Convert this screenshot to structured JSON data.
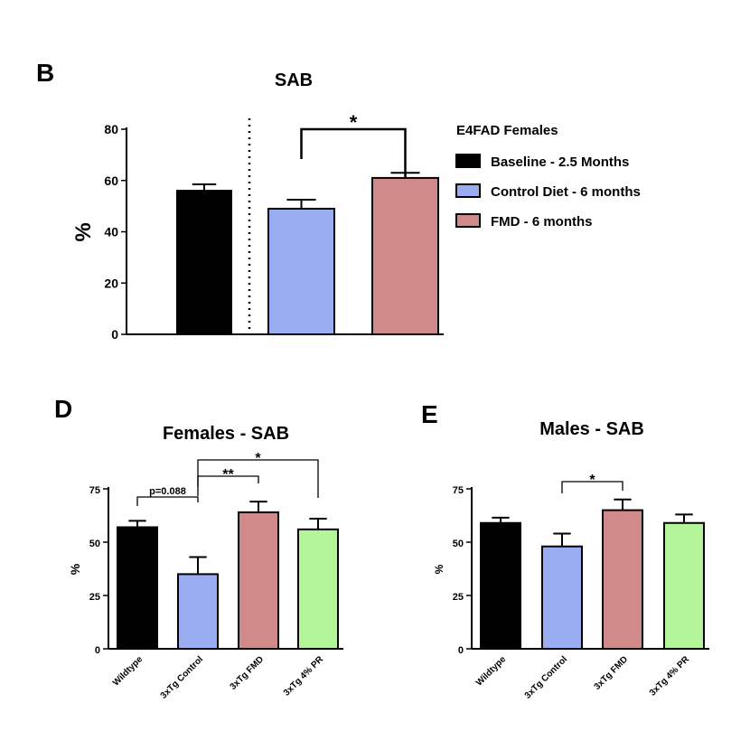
{
  "chart_data": [
    {
      "panel": "B",
      "type": "bar",
      "title": "SAB",
      "ylabel": "%",
      "ylim": [
        0,
        80
      ],
      "yticks": [
        "0",
        "20",
        "40",
        "60",
        "80"
      ],
      "categories": [
        "Baseline - 2.5 Months",
        "Control Diet - 6 months",
        "FMD - 6 months"
      ],
      "values": [
        56,
        49,
        61
      ],
      "errors": [
        2.5,
        3.5,
        2.0
      ],
      "colors": [
        "#000000",
        "#9aadf0",
        "#d08a8a"
      ],
      "legend_title": "E4FAD Females",
      "legend": [
        "Baseline - 2.5 Months",
        "Control Diet - 6 months",
        "FMD - 6 months"
      ],
      "annotations": [
        {
          "from": 1,
          "to": 2,
          "label": "*"
        }
      ]
    },
    {
      "panel": "D",
      "type": "bar",
      "title": "Females - SAB",
      "ylabel": "%",
      "ylim": [
        0,
        75
      ],
      "yticks": [
        "0",
        "25",
        "50",
        "75"
      ],
      "categories": [
        "Wildtype",
        "3xTg Control",
        "3xTg FMD",
        "3xTg 4% PR"
      ],
      "values": [
        57,
        35,
        64,
        56
      ],
      "errors": [
        3,
        8,
        5,
        5
      ],
      "colors": [
        "#000000",
        "#9aadf0",
        "#d08a8a",
        "#b5f59a"
      ],
      "annotations": [
        {
          "from": 0,
          "to": 1,
          "label": "p=0.088"
        },
        {
          "from": 1,
          "to": 2,
          "label": "**"
        },
        {
          "from": 1,
          "to": 3,
          "label": "*"
        }
      ]
    },
    {
      "panel": "E",
      "type": "bar",
      "title": "Males - SAB",
      "ylabel": "%",
      "ylim": [
        0,
        75
      ],
      "yticks": [
        "0",
        "25",
        "50",
        "75"
      ],
      "categories": [
        "Wildtype",
        "3xTg Control",
        "3xTg FMD",
        "3xTg 4% PR"
      ],
      "values": [
        59,
        48,
        65,
        59
      ],
      "errors": [
        2.5,
        6,
        5,
        4
      ],
      "colors": [
        "#000000",
        "#9aadf0",
        "#d08a8a",
        "#b5f59a"
      ],
      "annotations": [
        {
          "from": 1,
          "to": 2,
          "label": "*"
        }
      ]
    }
  ]
}
